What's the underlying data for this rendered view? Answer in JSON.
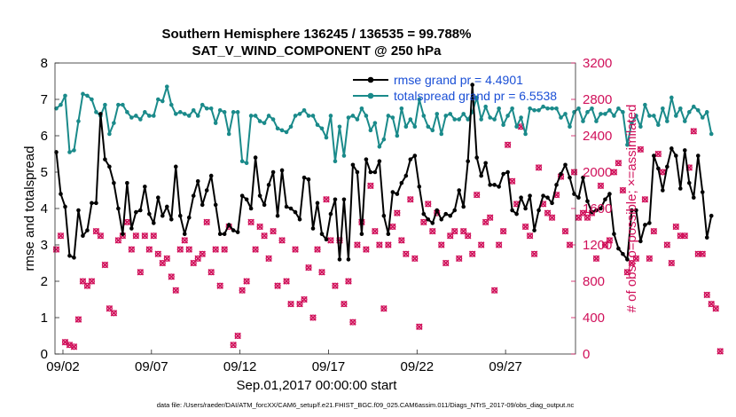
{
  "colors": {
    "rmse": "#000000",
    "spread": "#1a8a8a",
    "obs": "#d0105a",
    "legend_text": "#1a4fd6"
  },
  "chart_data": {
    "type": "line",
    "title_line1": "Southern Hemisphere 136245 / 136535 = 99.788%",
    "title_line2": "SAT_V_WIND_COMPONENT @ 250 hPa",
    "ylabel": "rmse and totalspread",
    "ylabel_right": "# of obs: o=possible; ×=assimilated",
    "xlabel": "Sep.01,2017 00:00:00 start",
    "footnote": "data file: /Users/raeder/DAI/ATM_forcXX/CAM6_setup/f.e21.FHIST_BGC.f09_025.CAM6assim.011/Diags_NTrS_2017-09/obs_diag_output.nc",
    "xlim": [
      1.55,
      30.95
    ],
    "ylim": [
      0,
      8
    ],
    "ylim_right": [
      0,
      3200
    ],
    "y_ticks": [
      "0",
      "1",
      "2",
      "3",
      "4",
      "5",
      "6",
      "7",
      "8"
    ],
    "y_right_ticks": [
      "0",
      "400",
      "800",
      "1200",
      "1600",
      "2000",
      "2400",
      "2800",
      "3200"
    ],
    "x_ticks": [
      {
        "value": 2,
        "label": "09/02"
      },
      {
        "value": 7,
        "label": "09/07"
      },
      {
        "value": 12,
        "label": "09/12"
      },
      {
        "value": 17,
        "label": "09/17"
      },
      {
        "value": 22,
        "label": "09/22"
      },
      {
        "value": 27,
        "label": "09/27"
      }
    ],
    "x_start": 1.625,
    "x_step": 0.25,
    "legend": {
      "rmse_label": "rmse grand pr = 4.4901",
      "spread_label": "totalspread grand pr = 6.5538"
    },
    "series": [
      {
        "name": "rmse",
        "axis": "left",
        "marker": "dot",
        "values": [
          5.55,
          4.4,
          4.05,
          2.7,
          2.65,
          3.95,
          3.25,
          3.4,
          4.15,
          4.15,
          6.6,
          5.35,
          5.15,
          4.7,
          4.0,
          3.3,
          4.7,
          3.45,
          3.9,
          3.95,
          4.6,
          3.85,
          3.6,
          4.3,
          3.8,
          4.05,
          3.7,
          5.15,
          3.8,
          3.3,
          3.75,
          4.35,
          4.75,
          4.1,
          4.5,
          4.9,
          4.1,
          3.3,
          3.3,
          3.55,
          3.4,
          3.35,
          4.35,
          4.25,
          4.0,
          5.4,
          4.35,
          4.1,
          4.65,
          5.0,
          3.8,
          5.05,
          4.05,
          4.0,
          3.9,
          3.7,
          4.85,
          4.8,
          3.45,
          4.15,
          3.3,
          3.15,
          3.85,
          4.25,
          2.6,
          4.25,
          2.6,
          5.2,
          5.0,
          3.3,
          5.35,
          5.0,
          5.0,
          5.3,
          3.8,
          3.3,
          4.45,
          4.4,
          4.7,
          4.9,
          5.35,
          5.45,
          4.6,
          3.85,
          3.7,
          3.6,
          3.95,
          3.7,
          3.85,
          3.8,
          3.95,
          4.5,
          4.05,
          5.3,
          7.4,
          5.4,
          4.9,
          5.25,
          4.65,
          4.65,
          4.6,
          4.95,
          5.0,
          3.95,
          3.85,
          4.3,
          4.0,
          4.35,
          3.4,
          3.95,
          4.35,
          4.3,
          4.15,
          4.65,
          4.95,
          5.2,
          4.85,
          4.4,
          4.3,
          4.85,
          4.2,
          3.9,
          3.95,
          4.0,
          4.25,
          4.4,
          3.3,
          2.9,
          2.75,
          2.6,
          3.95,
          3.95,
          3.1,
          3.55,
          3.6,
          5.45,
          5.1,
          4.5,
          5.15,
          5.65,
          5.45,
          4.55,
          5.6,
          4.7,
          4.3,
          5.45,
          4.45,
          3.2,
          3.8
        ]
      },
      {
        "name": "totalspread",
        "axis": "left",
        "marker": "dot",
        "values": [
          6.75,
          6.85,
          7.1,
          5.55,
          5.6,
          6.4,
          7.15,
          7.1,
          7.0,
          6.65,
          6.55,
          6.85,
          6.05,
          6.35,
          6.85,
          6.85,
          6.65,
          6.5,
          6.55,
          6.45,
          6.65,
          6.55,
          6.55,
          7.0,
          6.95,
          7.35,
          6.85,
          6.6,
          6.65,
          6.6,
          6.55,
          6.7,
          6.55,
          6.85,
          6.75,
          6.75,
          6.35,
          6.7,
          6.65,
          6.05,
          6.65,
          6.65,
          5.3,
          5.25,
          6.55,
          6.55,
          6.4,
          6.35,
          6.55,
          6.45,
          6.2,
          6.15,
          6.1,
          6.25,
          6.55,
          6.6,
          6.7,
          6.55,
          6.55,
          6.3,
          6.2,
          5.95,
          6.55,
          5.3,
          6.25,
          5.45,
          6.5,
          6.55,
          6.45,
          6.75,
          6.55,
          6.15,
          6.35,
          5.7,
          5.9,
          6.55,
          6.5,
          6.0,
          6.75,
          6.25,
          6.45,
          6.25,
          7.0,
          6.55,
          6.25,
          6.15,
          6.6,
          6.05,
          6.55,
          6.6,
          6.45,
          6.45,
          6.6,
          6.45,
          6.65,
          7.05,
          6.45,
          6.8,
          6.5,
          6.45,
          6.75,
          6.3,
          6.55,
          6.75,
          6.25,
          6.5,
          6.05,
          6.75,
          6.7,
          6.7,
          6.8,
          6.75,
          6.75,
          6.75,
          6.5,
          6.6,
          6.25,
          6.65,
          6.75,
          6.4,
          6.65,
          6.75,
          6.4,
          6.6,
          6.6,
          6.7,
          6.55,
          6.75,
          6.65,
          5.75,
          6.35,
          6.55,
          6.25,
          6.85,
          6.55,
          6.55,
          6.3,
          6.75,
          6.4,
          7.05,
          6.55,
          6.75,
          6.4,
          6.65,
          6.8,
          6.7,
          6.5,
          6.65,
          6.05
        ]
      },
      {
        "name": "obs_possible",
        "axis": "right",
        "marker": "circle",
        "values": [
          1150,
          1300,
          130,
          100,
          80,
          380,
          800,
          750,
          800,
          1350,
          1300,
          980,
          500,
          450,
          1250,
          1300,
          1450,
          1150,
          1300,
          900,
          1300,
          1150,
          1300,
          1100,
          1000,
          1050,
          850,
          700,
          1150,
          1250,
          1150,
          1000,
          1050,
          1100,
          1450,
          900,
          1150,
          750,
          1150,
          1400,
          100,
          200,
          700,
          800,
          1450,
          1150,
          1400,
          1300,
          1050,
          1350,
          750,
          1250,
          800,
          550,
          1150,
          550,
          600,
          950,
          400,
          1150,
          900,
          1700,
          1250,
          750,
          1250,
          550,
          800,
          350,
          1200,
          1450,
          1150,
          1850,
          1350,
          1200,
          500,
          1200,
          1400,
          1550,
          1250,
          1100,
          1700,
          1050,
          300,
          1450,
          1650,
          1350,
          1550,
          1200,
          1000,
          1300,
          1350,
          1050,
          1350,
          1300,
          1100,
          1750,
          1200,
          1450,
          1500,
          700,
          1200,
          1350,
          2300,
          1900,
          1650,
          2500,
          1400,
          1300,
          1100,
          2050,
          1650,
          1550,
          1500,
          1750,
          1950,
          1350,
          1200,
          2000,
          1500,
          1550,
          1500,
          1550,
          1050,
          1850,
          1200,
          1250,
          2000,
          2100,
          1800,
          900,
          1000,
          1050,
          2250,
          1700,
          1050,
          1350,
          2200,
          2000,
          1200,
          1000,
          1400,
          1300,
          1300,
          2050,
          2450,
          1100,
          1100,
          650,
          550,
          500,
          30
        ]
      },
      {
        "name": "obs_assimilated",
        "axis": "right",
        "marker": "x",
        "values": [
          1150,
          1300,
          130,
          100,
          80,
          380,
          800,
          750,
          800,
          1350,
          1300,
          980,
          500,
          450,
          1250,
          1300,
          1450,
          1150,
          1300,
          900,
          1300,
          1150,
          1300,
          1100,
          1000,
          1050,
          850,
          700,
          1150,
          1250,
          1150,
          1000,
          1050,
          1100,
          1450,
          900,
          1150,
          750,
          1150,
          1400,
          100,
          200,
          700,
          800,
          1450,
          1150,
          1400,
          1300,
          1050,
          1350,
          750,
          1250,
          800,
          550,
          1150,
          550,
          600,
          950,
          400,
          1150,
          900,
          1700,
          1250,
          750,
          1250,
          550,
          800,
          350,
          1200,
          1450,
          1150,
          1850,
          1350,
          1200,
          500,
          1200,
          1400,
          1550,
          1250,
          1100,
          1700,
          1050,
          300,
          1450,
          1650,
          1350,
          1550,
          1200,
          1000,
          1300,
          1350,
          1050,
          1350,
          1300,
          1100,
          1750,
          1200,
          1450,
          1500,
          700,
          1200,
          1350,
          2300,
          1900,
          1650,
          2500,
          1400,
          1300,
          1100,
          2050,
          1650,
          1550,
          1500,
          1750,
          1950,
          1350,
          1200,
          2000,
          1500,
          1550,
          1500,
          1550,
          1050,
          1850,
          1200,
          1250,
          2000,
          2100,
          1800,
          900,
          1000,
          1050,
          2250,
          1700,
          1050,
          1350,
          2200,
          2000,
          1200,
          1000,
          1400,
          1300,
          1300,
          2050,
          2450,
          1100,
          1100,
          650,
          550,
          500,
          30
        ]
      }
    ]
  }
}
